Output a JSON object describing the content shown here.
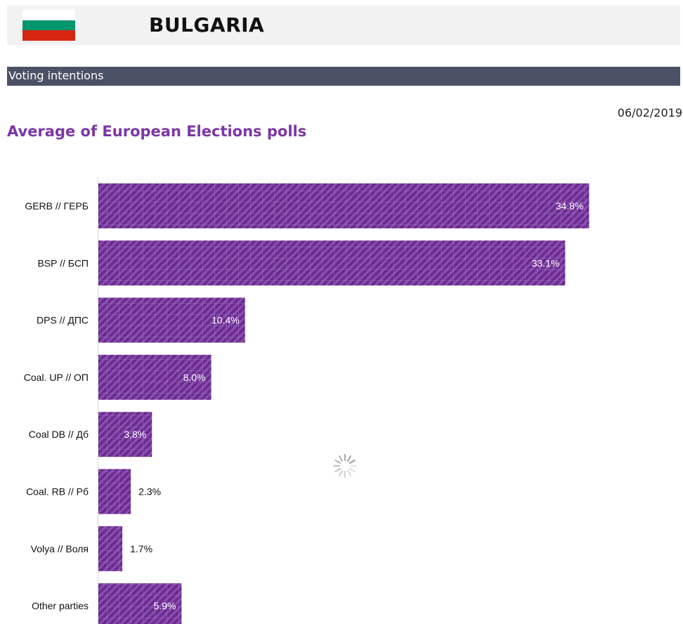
{
  "header": {
    "country": "BULGARIA",
    "flag_colors": [
      "#ffffff",
      "#00966e",
      "#d62612"
    ]
  },
  "section": {
    "title": "Voting intentions"
  },
  "chart_date": "06/02/2019",
  "colors": {
    "bar": "#6a2c8f",
    "bar_hatch": "#8a4eb0",
    "bar_grid": "#a678c4",
    "title": "#7c36a6",
    "section_bar": "#4b5266"
  },
  "chart_data": {
    "type": "bar",
    "orientation": "horizontal",
    "title": "Average of European Elections polls",
    "categories": [
      "GERB // ГЕРБ",
      "BSP // БСП",
      "DPS // ДПС",
      "Coal. UP // ОП",
      "Coal DB // Дб",
      "Coal. RB // Рб",
      "Volya // Воля",
      "Other parties"
    ],
    "values": [
      34.8,
      33.1,
      10.4,
      8.0,
      3.8,
      2.3,
      1.7,
      5.9
    ],
    "value_labels": [
      "34.8%",
      "33.1%",
      "10.4%",
      "8.0%",
      "3.8%",
      "2.3%",
      "1.7%",
      "5.9%"
    ],
    "unit": "%",
    "xlim": [
      0,
      40
    ],
    "grid": false,
    "legend": "none"
  }
}
